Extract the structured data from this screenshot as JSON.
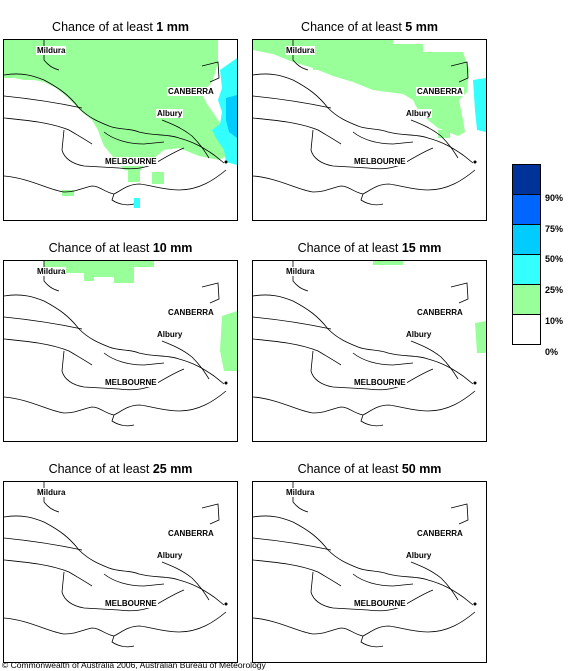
{
  "panels": [
    {
      "prefix": "Chance of at least ",
      "amount": "1 mm"
    },
    {
      "prefix": "Chance of at least ",
      "amount": "5 mm"
    },
    {
      "prefix": "Chance of at least ",
      "amount": "10 mm"
    },
    {
      "prefix": "Chance of at least ",
      "amount": "15 mm"
    },
    {
      "prefix": "Chance of at least ",
      "amount": "25 mm"
    },
    {
      "prefix": "Chance of at least ",
      "amount": "50 mm"
    }
  ],
  "places": {
    "mildura": "Mildura",
    "canberra": "CANBERRA",
    "albury": "Albury",
    "melbourne": "MELBOURNE"
  },
  "legend": {
    "colors": [
      "#003399",
      "#0066ff",
      "#00ccff",
      "#33ffff",
      "#99ff99",
      "#ffffff"
    ],
    "labels": [
      "90%",
      "75%",
      "50%",
      "25%",
      "10%",
      "0%"
    ]
  },
  "copyright": "© Commonwealth of Australia 2006, Australian Bureau of Meteorology"
}
